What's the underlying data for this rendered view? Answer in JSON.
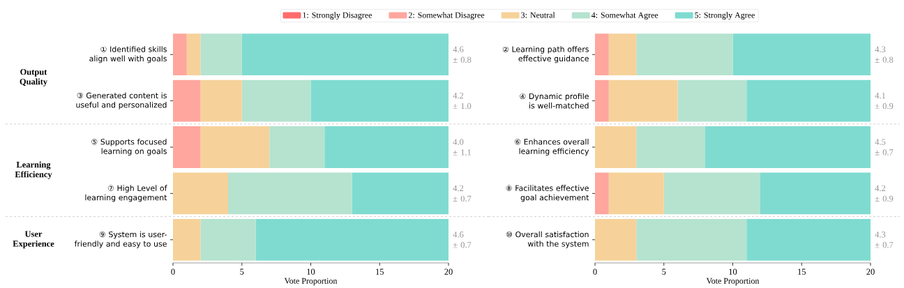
{
  "chart_data": [
    {
      "type": "bar",
      "orientation": "horizontal",
      "stacked": true,
      "categories": [
        "① Identified skills align well with goals",
        "③ Generated content is useful and personalized",
        "⑤ Supports focused learning on goals",
        "⑦ High Level of learning engagement",
        "⑨ System is user-friendly and easy to use"
      ],
      "series": [
        {
          "name": "1: Strongly Disagree",
          "color": "#ff6b6b",
          "values": [
            0,
            0,
            0,
            0,
            0
          ]
        },
        {
          "name": "2: Somewhat Disagree",
          "color": "#ffa69e",
          "values": [
            1,
            2,
            2,
            0,
            0
          ]
        },
        {
          "name": "3: Neutral",
          "color": "#f6d29a",
          "values": [
            1,
            3,
            5,
            4,
            2
          ]
        },
        {
          "name": "4: Somewhat Agree",
          "color": "#b5e3d0",
          "values": [
            3,
            5,
            4,
            9,
            4
          ]
        },
        {
          "name": "5: Strongly Agree",
          "color": "#7fdbd0",
          "values": [
            15,
            10,
            9,
            7,
            14
          ]
        }
      ],
      "xlim": [
        0,
        20
      ],
      "xticks": [
        0,
        5,
        10,
        15,
        20
      ],
      "xlabel": "Vote Proportion",
      "legend": "top",
      "annotations": [
        "Output Quality",
        "Learning Efficiency",
        "User Experience",
        "4.6 ± 0.8",
        "4.2 ± 1.0",
        "4.0 ± 1.1",
        "4.2 ± 0.7",
        "4.6 ± 0.7"
      ]
    },
    {
      "type": "bar",
      "orientation": "horizontal",
      "stacked": true,
      "categories": [
        "② Learning path offers effective guidance",
        "④ Dynamic profile is well-matched",
        "⑥ Enhances overall learning efficiency",
        "⑧ Facilitates effective goal achievement",
        "⑩ Overall satisfaction with the system"
      ],
      "series": [
        {
          "color": "#ff6b6b",
          "values": [
            0,
            0,
            0,
            0,
            0
          ]
        },
        {
          "color": "#ffa69e",
          "values": [
            1,
            1,
            0,
            1,
            0
          ]
        },
        {
          "color": "#f6d29a",
          "values": [
            2,
            5,
            3,
            4,
            3
          ]
        },
        {
          "color": "#b5e3d0",
          "values": [
            7,
            5,
            5,
            7,
            8
          ]
        },
        {
          "color": "#7fdbd0",
          "values": [
            10,
            9,
            12,
            8,
            9
          ]
        }
      ],
      "xlim": [
        0,
        20
      ],
      "xticks": [
        0,
        5,
        10,
        15,
        20
      ],
      "xlabel": "Vote Proportion",
      "annotations": [
        "4.3 ± 0.8",
        "4.1 ± 0.9",
        "4.5 ± 0.7",
        "4.2 ± 0.9",
        "4.3 ± 0.7"
      ]
    }
  ]
}
